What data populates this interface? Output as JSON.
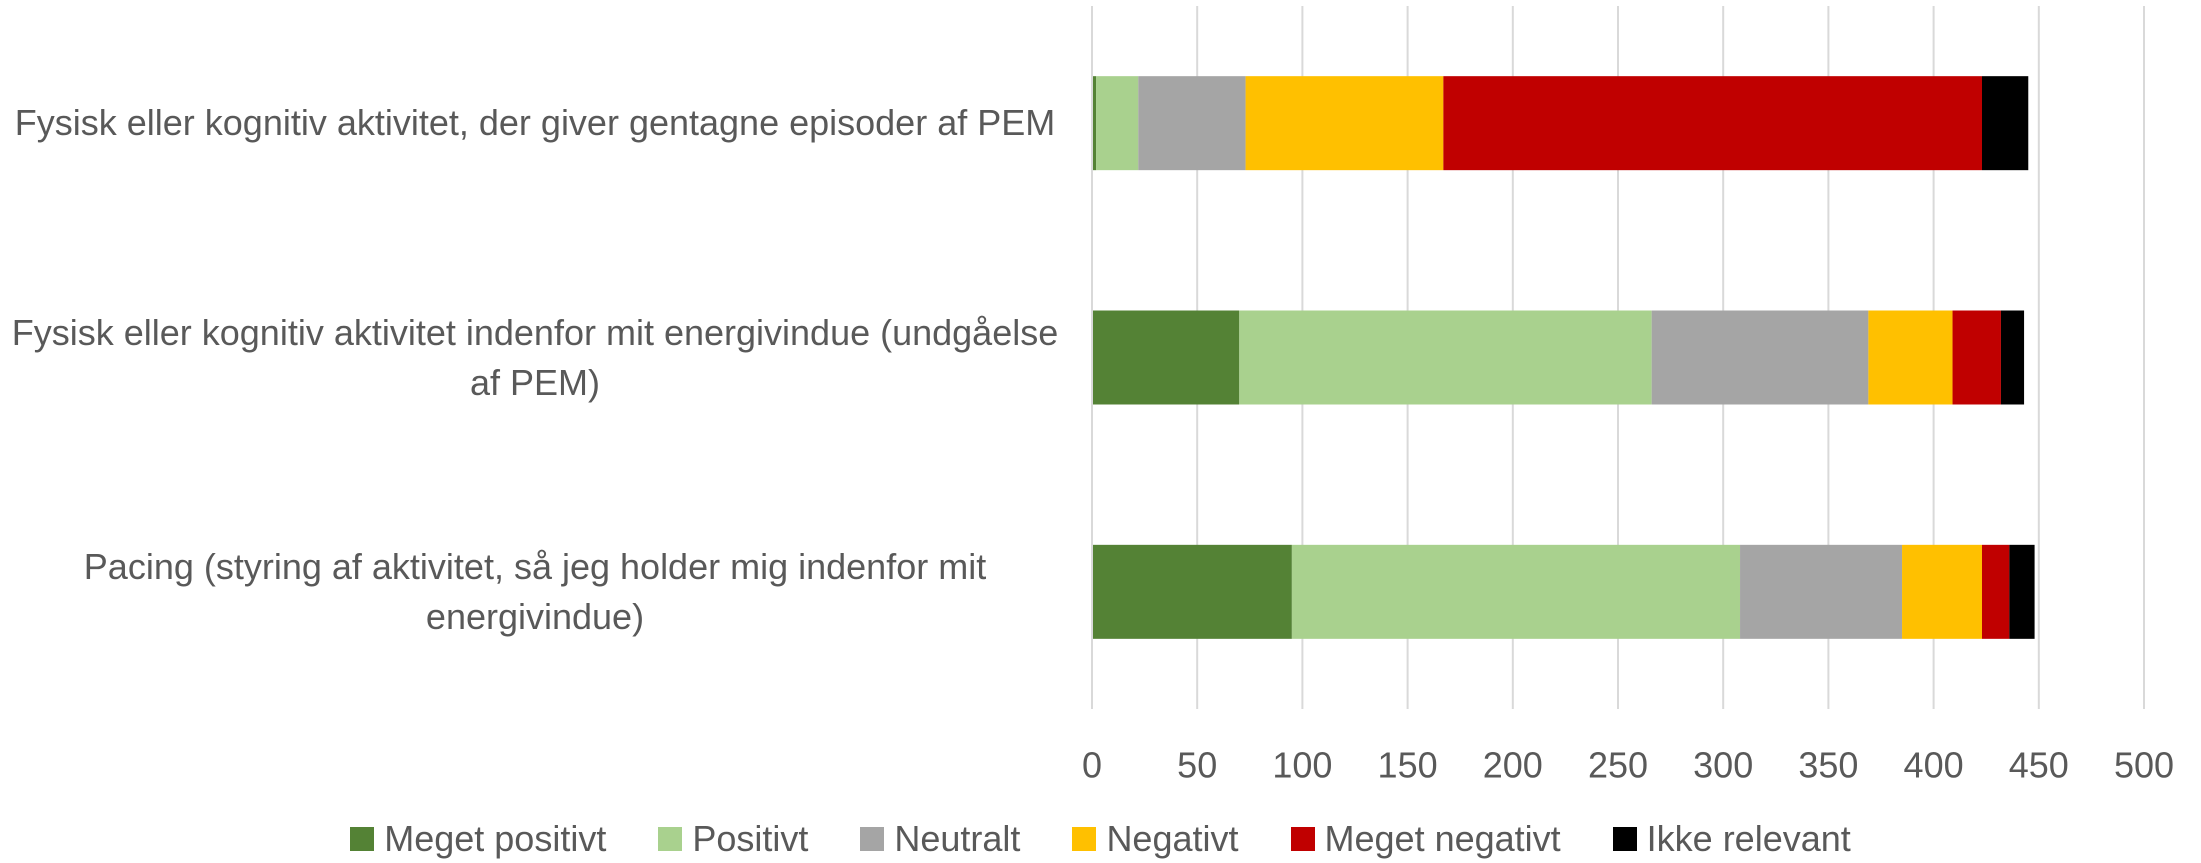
{
  "chart_data": {
    "type": "stacked_bar_horizontal",
    "categories": [
      "Fysisk eller kognitiv aktivitet, der giver gentagne episoder af PEM",
      "Fysisk eller kognitiv aktivitet indenfor mit energivindue (undgåelse af PEM)",
      "Pacing (styring af aktivitet, så jeg holder mig indenfor mit energivindue)"
    ],
    "series": [
      {
        "name": "Meget positivt",
        "color": "#548235",
        "values": [
          2,
          70,
          95
        ]
      },
      {
        "name": "Positivt",
        "color": "#a9d18e",
        "values": [
          20,
          196,
          213
        ]
      },
      {
        "name": "Neutralt",
        "color": "#a5a5a5",
        "values": [
          51,
          103,
          77
        ]
      },
      {
        "name": "Negativt",
        "color": "#ffc000",
        "values": [
          94,
          40,
          38
        ]
      },
      {
        "name": "Meget negativt",
        "color": "#c00000",
        "values": [
          256,
          23,
          13
        ]
      },
      {
        "name": "Ikke relevant",
        "color": "#000000",
        "values": [
          22,
          11,
          12
        ]
      }
    ],
    "xlim": [
      0,
      500
    ],
    "xticks": [
      0,
      50,
      100,
      150,
      200,
      250,
      300,
      350,
      400,
      450,
      500
    ],
    "grid": true,
    "legend": "bottom"
  }
}
